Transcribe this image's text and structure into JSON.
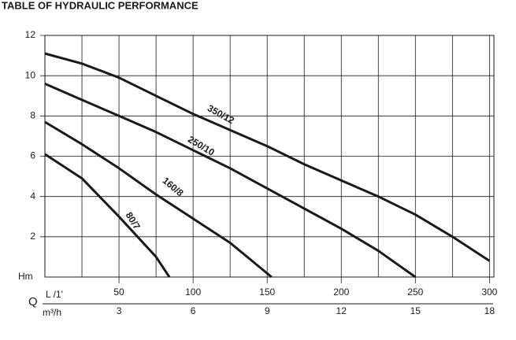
{
  "chart_data": {
    "type": "line",
    "title": "TABLE OF HYDRAULIC PERFORMANCE",
    "ylabel": "Hm",
    "xlabel_prefix": "Q",
    "xlabel": "L /1'",
    "x2label": "m³/h",
    "xlim": [
      0,
      303
    ],
    "xticks": [
      50,
      100,
      150,
      200,
      250,
      300
    ],
    "xminor_ticks": [
      25,
      75,
      125,
      175,
      225,
      275
    ],
    "x2lim": [
      0,
      18.18
    ],
    "x2ticks": [
      3,
      6,
      9,
      12,
      15,
      18
    ],
    "ylim": [
      0,
      12
    ],
    "yticks": [
      2,
      4,
      6,
      8,
      10,
      12
    ],
    "grid": true,
    "series": [
      {
        "name": "350/12",
        "color": "#1a1a1a",
        "x": [
          0,
          25,
          50,
          75,
          100,
          125,
          150,
          175,
          200,
          225,
          250,
          275,
          300
        ],
        "values": [
          11.1,
          10.6,
          9.9,
          9.0,
          8.1,
          7.3,
          6.5,
          5.6,
          4.8,
          4.0,
          3.1,
          2.0,
          0.8
        ]
      },
      {
        "name": "250/10",
        "color": "#1a1a1a",
        "x": [
          0,
          25,
          50,
          75,
          100,
          125,
          150,
          175,
          200,
          225,
          250
        ],
        "values": [
          9.6,
          8.8,
          8.0,
          7.2,
          6.3,
          5.4,
          4.4,
          3.4,
          2.4,
          1.3,
          0
        ]
      },
      {
        "name": "160/8",
        "color": "#1a1a1a",
        "x": [
          0,
          25,
          50,
          75,
          100,
          125,
          153
        ],
        "values": [
          7.7,
          6.6,
          5.4,
          4.1,
          2.9,
          1.7,
          0
        ]
      },
      {
        "name": "80/7",
        "color": "#1a1a1a",
        "x": [
          0,
          25,
          50,
          75,
          84
        ],
        "values": [
          6.1,
          4.9,
          3.0,
          1.0,
          0
        ]
      }
    ]
  }
}
